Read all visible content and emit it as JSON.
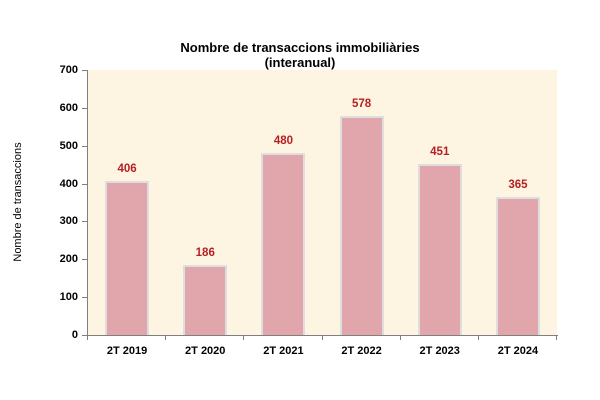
{
  "chart_data": {
    "type": "bar",
    "title": "Nombre de transaccions immobiliàries",
    "subtitle": "(interanual)",
    "ylabel": "Nombre de transaccions",
    "xlabel": "",
    "categories": [
      "2T 2019",
      "2T 2020",
      "2T 2021",
      "2T 2022",
      "2T 2023",
      "2T 2024"
    ],
    "values": [
      406,
      186,
      480,
      578,
      451,
      365
    ],
    "yticks": [
      0,
      100,
      200,
      300,
      400,
      500,
      600,
      700
    ],
    "ylim": [
      0,
      700
    ],
    "grid": "off",
    "legend": "none",
    "data_labels": "above-bars",
    "colors": {
      "bar_fill": "#E0A6AB",
      "bar_border": "#DEDEDE",
      "value_label": "#B42025",
      "plot_background": "#FDF5E1",
      "axis_line": "#7F7F7F",
      "text": "#000000",
      "page_background": "#FFFFFF"
    }
  }
}
